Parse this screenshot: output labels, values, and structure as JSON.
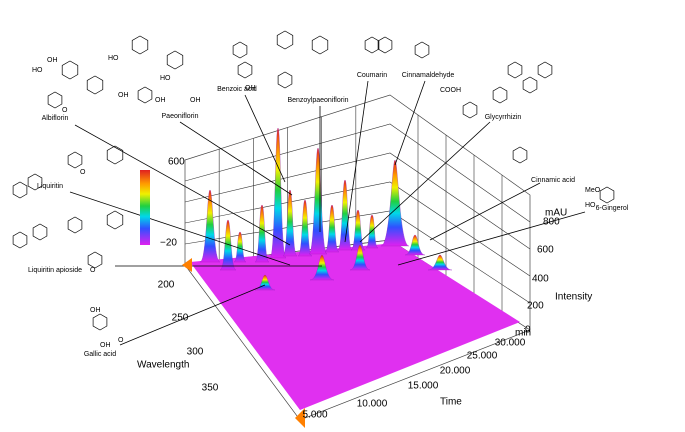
{
  "compounds": [
    {
      "label": "Albiflorin"
    },
    {
      "label": "Paeoniflorin"
    },
    {
      "label": "Benzoic acid"
    },
    {
      "label": "Benzoylpaeoniflorin"
    },
    {
      "label": "Coumarin"
    },
    {
      "label": "Cinnamaldehyde"
    },
    {
      "label": "Glycyrrhizin"
    },
    {
      "label": "Cinnamic acid"
    },
    {
      "label": "6-Gingerol"
    },
    {
      "label": "Liquiritin"
    },
    {
      "label": "Liquiritin apioside"
    },
    {
      "label": "Gallic acid"
    }
  ],
  "colorbar": {
    "max": "600",
    "min": "−20"
  },
  "atom_labels": [
    "HO",
    "OH",
    "HO",
    "OH",
    "OH",
    "HO",
    "OH",
    "OH",
    "COOH",
    "MeO",
    "HO",
    "OH",
    "O",
    "O",
    "O",
    "O",
    "OH"
  ],
  "axes": {
    "intensity": {
      "unit": "mAU",
      "title": "Intensity",
      "ticks": [
        "800",
        "600",
        "400",
        "200",
        "0"
      ]
    },
    "wavelength": {
      "title": "Wavelength",
      "ticks": [
        "200",
        "250",
        "300",
        "350"
      ]
    },
    "time": {
      "unit": "min",
      "title": "Time",
      "ticks": [
        "5.000",
        "10.000",
        "15.000",
        "20.000",
        "25.000",
        "30.000"
      ]
    }
  }
}
